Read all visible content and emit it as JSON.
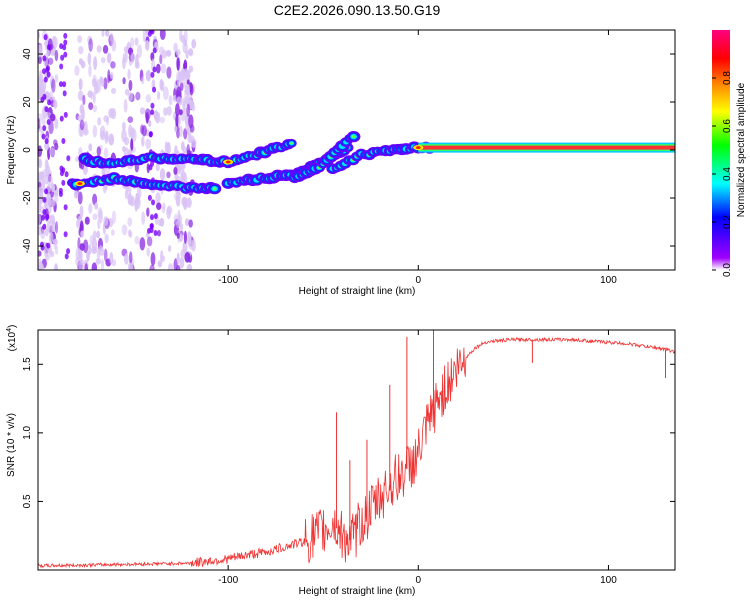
{
  "title": "C2E2.2026.090.13.50.G19",
  "chart_data": [
    {
      "type": "heatmap",
      "name": "spectrogram",
      "xlabel": "Height of straight line (km)",
      "ylabel": "Frequency (Hz)",
      "xlim": [
        -200,
        135
      ],
      "ylim": [
        -50,
        50
      ],
      "xticks": [
        -100,
        0,
        100
      ],
      "xtick_labels": [
        "-100",
        "0",
        "100"
      ],
      "yticks": [
        -40,
        -20,
        0,
        20,
        40
      ],
      "ytick_labels": [
        "-40",
        "-20",
        "0",
        "20",
        "40"
      ],
      "colorbar": {
        "label": "Normalized spectral amplitude",
        "range": [
          0,
          1
        ],
        "ticks": [
          0.0,
          0.2,
          0.4,
          0.6,
          0.8
        ],
        "tick_labels": [
          "0.0",
          "0.2",
          "0.4",
          "0.6",
          "0.8"
        ],
        "colors": [
          "#ffffff",
          "#8a00ff",
          "#0000ff",
          "#00ffff",
          "#00ff00",
          "#ffff00",
          "#ff8000",
          "#ff0000",
          "#ff0080"
        ]
      },
      "tracks": [
        {
          "name": "main-track",
          "points": [
            [
              -175,
              -4
            ],
            [
              -160,
              -6
            ],
            [
              -140,
              -3
            ],
            [
              -120,
              -4
            ],
            [
              -100,
              -5
            ],
            [
              -85,
              -2
            ],
            [
              -70,
              2
            ],
            [
              -65,
              4
            ]
          ]
        },
        {
          "name": "lower-track",
          "points": [
            [
              -182,
              -14
            ],
            [
              -160,
              -12
            ],
            [
              -140,
              -14
            ],
            [
              -120,
              -16
            ],
            [
              -105,
              -16
            ]
          ]
        },
        {
          "name": "descending-branch",
          "points": [
            [
              -100,
              -14
            ],
            [
              -85,
              -12
            ],
            [
              -65,
              -10
            ],
            [
              -50,
              -5
            ],
            [
              -35,
              2
            ]
          ]
        },
        {
          "name": "rising-branch",
          "points": [
            [
              -65,
              -12
            ],
            [
              -50,
              -6
            ],
            [
              -40,
              2
            ],
            [
              -32,
              7
            ]
          ]
        },
        {
          "name": "convergence",
          "points": [
            [
              -45,
              -8
            ],
            [
              -30,
              -2
            ],
            [
              -15,
              0
            ],
            [
              0,
              1
            ],
            [
              10,
              1
            ]
          ]
        },
        {
          "name": "steady-signal",
          "points": [
            [
              0,
              1
            ],
            [
              135,
              1
            ]
          ]
        }
      ]
    },
    {
      "type": "line",
      "name": "snr",
      "xlabel": "Height of straight line (km)",
      "ylabel": "SNR (10 * v/v)",
      "y_scale_label": "(x10",
      "y_scale_exponent": "4",
      "xlim": [
        -200,
        135
      ],
      "ylim": [
        0,
        17500
      ],
      "xticks": [
        -100,
        0,
        100
      ],
      "xtick_labels": [
        "-100",
        "0",
        "100"
      ],
      "yticks": [
        5000,
        10000,
        15000
      ],
      "ytick_labels": [
        "0.5",
        "1.0",
        "1.5"
      ],
      "color": "#ee3333",
      "series": {
        "x": [
          -200,
          -180,
          -160,
          -140,
          -120,
          -100,
          -90,
          -80,
          -70,
          -60,
          -50,
          -45,
          -40,
          -35,
          -30,
          -25,
          -20,
          -15,
          -10,
          -5,
          0,
          5,
          10,
          15,
          20,
          25,
          30,
          35,
          40,
          50,
          60,
          70,
          80,
          90,
          100,
          110,
          120,
          130,
          135
        ],
        "y": [
          300,
          350,
          400,
          450,
          500,
          800,
          1100,
          1300,
          1700,
          2100,
          2800,
          3400,
          2500,
          2100,
          3500,
          4300,
          5300,
          6200,
          6800,
          7500,
          8400,
          10500,
          12200,
          13500,
          14600,
          15500,
          16200,
          16600,
          16700,
          16800,
          16800,
          16800,
          16800,
          16700,
          16600,
          16500,
          16300,
          16100,
          15900
        ]
      },
      "spikes": [
        {
          "x": -43,
          "y": 11500
        },
        {
          "x": -36,
          "y": 8000
        },
        {
          "x": -27,
          "y": 9500
        },
        {
          "x": -15,
          "y": 13500
        },
        {
          "x": -6,
          "y": 17000
        },
        {
          "x": 8,
          "y": 17500
        },
        {
          "x": 60,
          "y": 15100
        },
        {
          "x": 130,
          "y": 14000
        }
      ]
    }
  ]
}
